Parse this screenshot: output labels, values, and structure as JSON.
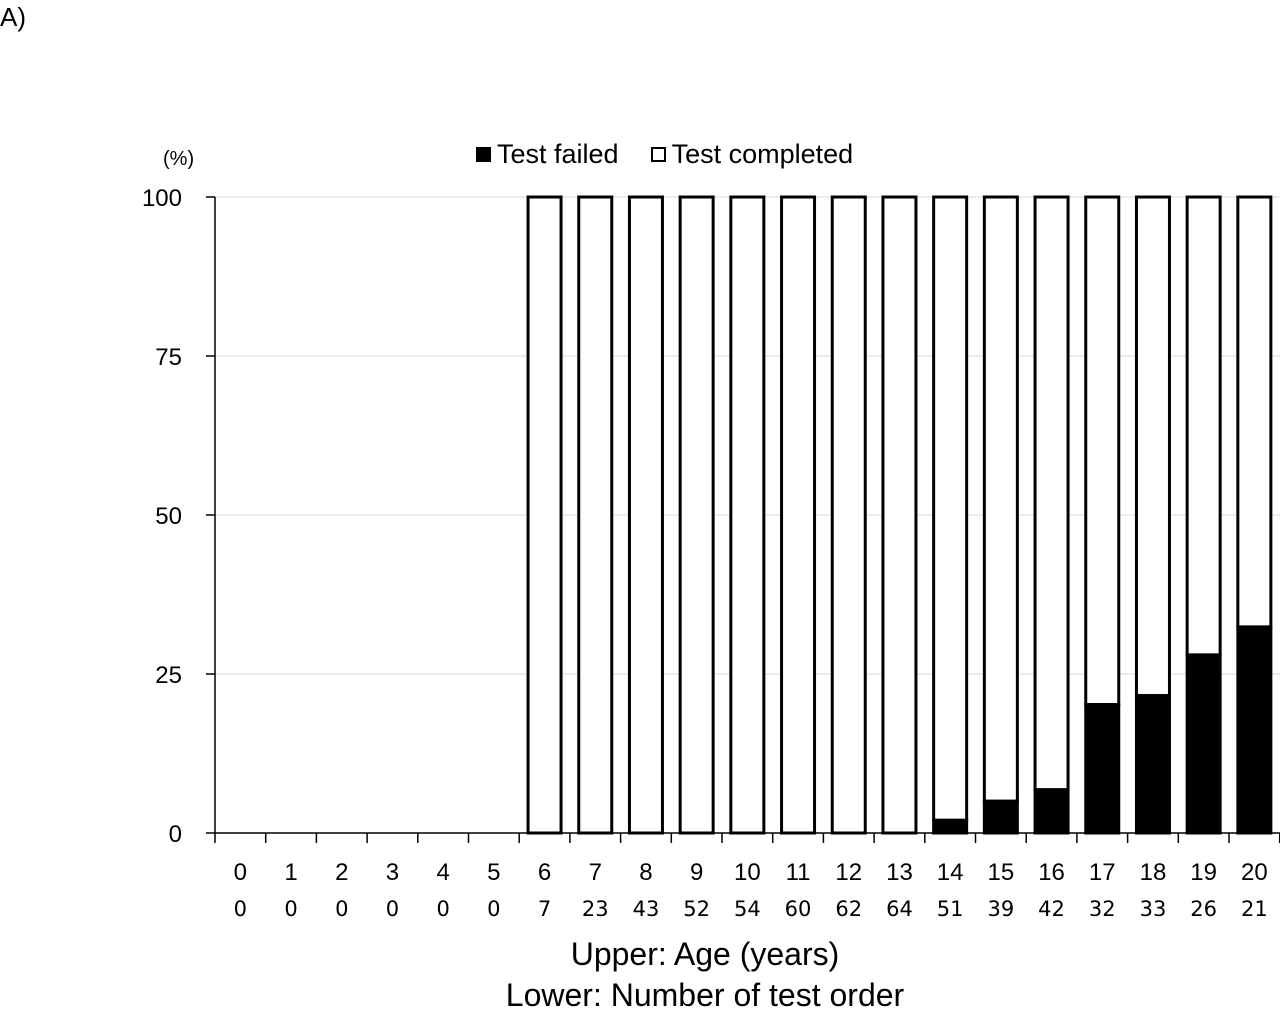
{
  "panel_label": "A)",
  "chart_data": {
    "type": "bar",
    "stacked": true,
    "unit_label": "(%)",
    "categories": [
      "0",
      "1",
      "2",
      "3",
      "4",
      "5",
      "6",
      "7",
      "8",
      "9",
      "10",
      "11",
      "12",
      "13",
      "14",
      "15",
      "16",
      "17",
      "18",
      "19",
      "20"
    ],
    "secondary_categories": [
      "0",
      "0",
      "0",
      "0",
      "0",
      "0",
      "7",
      "23",
      "43",
      "52",
      "54",
      "60",
      "62",
      "64",
      "51",
      "39",
      "42",
      "32",
      "33",
      "26",
      "21"
    ],
    "series": [
      {
        "name": "Test failed",
        "color": "#000000",
        "values": [
          0,
          0,
          0,
          0,
          0,
          0,
          0,
          0,
          0,
          0,
          0,
          0,
          0,
          0,
          2,
          5,
          6.8,
          20.2,
          21.6,
          28,
          32.4
        ]
      },
      {
        "name": "Test completed",
        "color": "#ffffff",
        "values": [
          0,
          0,
          0,
          0,
          0,
          0,
          100,
          100,
          100,
          100,
          100,
          100,
          100,
          100,
          98,
          95,
          93.2,
          79.8,
          78.4,
          72,
          67.6
        ]
      }
    ],
    "ylim": [
      0,
      100
    ],
    "yticks": [
      "0",
      "25",
      "50",
      "75",
      "100"
    ],
    "grid": true,
    "legend_position": "top-center",
    "xlabel_upper": "Upper: Age (years)",
    "xlabel_lower": "Lower: Number of test order"
  }
}
